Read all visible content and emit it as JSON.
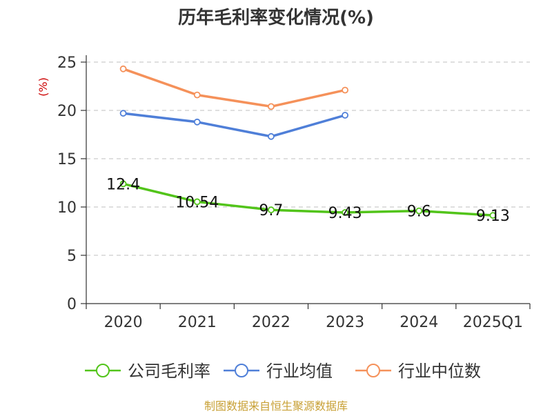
{
  "chart_data": {
    "type": "line",
    "title": "历年毛利率变化情况(%)",
    "ylabel": "(%)",
    "categories": [
      "2020",
      "2021",
      "2022",
      "2023",
      "2024",
      "2025Q1"
    ],
    "yticks": [
      "0",
      "5",
      "10",
      "15",
      "20",
      "25"
    ],
    "ylim": [
      0,
      25
    ],
    "grid": true,
    "legend_position": "bottom",
    "series": [
      {
        "name": "公司毛利率",
        "color": "#52c41a",
        "values": [
          12.4,
          10.54,
          9.7,
          9.43,
          9.6,
          9.13
        ],
        "labels": [
          "12.4",
          "10.54",
          "9.7",
          "9.43",
          "9.6",
          "9.13"
        ]
      },
      {
        "name": "行业均值",
        "color": "#4f7fd8",
        "values": [
          19.7,
          18.8,
          17.3,
          19.5,
          null,
          null
        ]
      },
      {
        "name": "行业中位数",
        "color": "#f5915a",
        "values": [
          24.3,
          21.6,
          20.4,
          22.1,
          null,
          null
        ]
      }
    ]
  },
  "source_text": "制图数据来自恒生聚源数据库"
}
